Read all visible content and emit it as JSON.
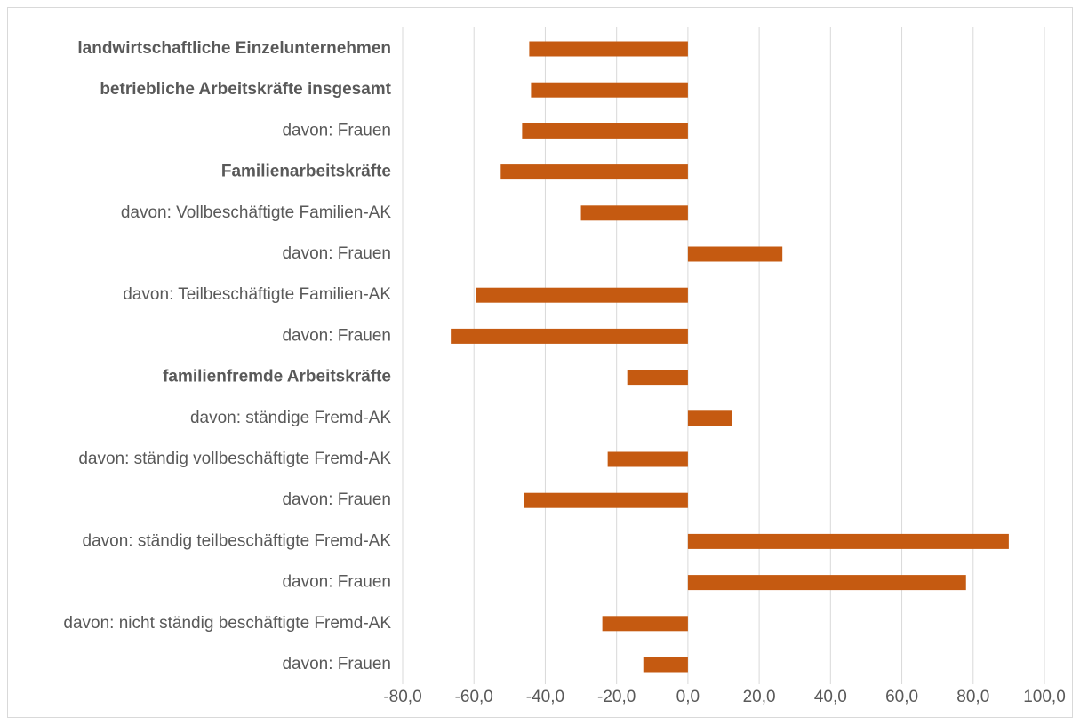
{
  "chart_data": {
    "type": "bar",
    "orientation": "horizontal",
    "title": "",
    "xlabel": "",
    "ylabel": "",
    "xlim": [
      -80,
      100
    ],
    "xticks": [
      -80,
      -60,
      -40,
      -20,
      0,
      20,
      40,
      60,
      80,
      100
    ],
    "xtick_labels": [
      "-80,0",
      "-60,0",
      "-40,0",
      "-20,0",
      "0,0",
      "20,0",
      "40,0",
      "60,0",
      "80,0",
      "100,0"
    ],
    "grid": true,
    "legend": "none",
    "bar_color": "#c55a11",
    "categories": [
      {
        "label": "landwirtschaftliche Einzelunternehmen",
        "bold": true
      },
      {
        "label": "betriebliche Arbeitskräfte insgesamt",
        "bold": true
      },
      {
        "label": "davon: Frauen",
        "bold": false
      },
      {
        "label": "Familienarbeitskräfte",
        "bold": true
      },
      {
        "label": "davon: Vollbeschäftigte Familien-AK",
        "bold": false
      },
      {
        "label": "davon: Frauen",
        "bold": false
      },
      {
        "label": "davon: Teilbeschäftigte Familien-AK",
        "bold": false
      },
      {
        "label": "davon: Frauen",
        "bold": false
      },
      {
        "label": "familienfremde Arbeitskräfte",
        "bold": true
      },
      {
        "label": "davon: ständige Fremd-AK",
        "bold": false
      },
      {
        "label": "davon: ständig vollbeschäftigte Fremd-AK",
        "bold": false
      },
      {
        "label": "davon: Frauen",
        "bold": false
      },
      {
        "label": "davon: ständig teilbeschäftigte Fremd-AK",
        "bold": false
      },
      {
        "label": "davon: Frauen",
        "bold": false
      },
      {
        "label": "davon: nicht ständig beschäftigte Fremd-AK",
        "bold": false
      },
      {
        "label": "davon: Frauen",
        "bold": false
      }
    ],
    "values": [
      -44.5,
      -44.0,
      -46.5,
      -52.5,
      -30.0,
      26.5,
      -59.5,
      -66.5,
      -17.0,
      12.3,
      -22.5,
      -46.0,
      90.0,
      78.0,
      -24.0,
      -12.5
    ]
  }
}
